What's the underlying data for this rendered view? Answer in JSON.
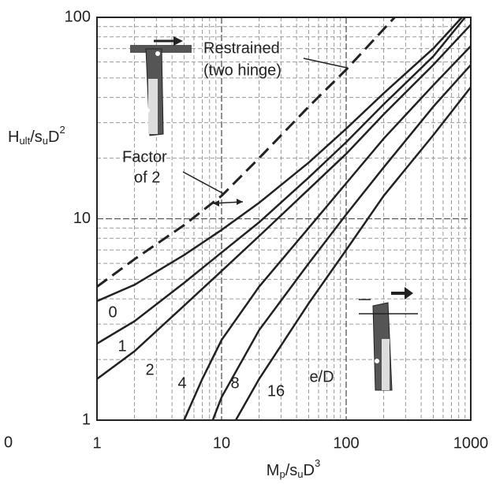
{
  "chart_data": {
    "type": "line",
    "log_x": true,
    "log_y": true,
    "grid": true,
    "xlim": [
      1,
      1000
    ],
    "ylim": [
      1,
      100
    ],
    "xticks": [
      1,
      10,
      100,
      1000
    ],
    "yticks": [
      1,
      10,
      100
    ],
    "xminor": [
      2,
      3,
      4,
      5,
      6,
      7,
      8,
      9,
      20,
      30,
      40,
      50,
      60,
      70,
      80,
      90,
      200,
      300,
      400,
      500,
      600,
      700,
      800,
      900
    ],
    "yminor": [
      2,
      3,
      4,
      5,
      6,
      7,
      8,
      9,
      20,
      30,
      40,
      50,
      60,
      70,
      80,
      90
    ],
    "xlabel_parts": [
      "M",
      "p",
      "/s",
      "u",
      "D",
      "3"
    ],
    "ylabel_parts": [
      "H",
      "ult",
      "/s",
      "u",
      "D",
      "2"
    ],
    "edge_label": "0",
    "series": [
      {
        "label_lines": [
          "Restrained",
          "(two hinge)"
        ],
        "dashed": true,
        "color": "#222",
        "x": [
          1,
          2,
          5,
          10,
          20,
          50,
          100,
          245
        ],
        "values": [
          4.6,
          6.3,
          9.3,
          13,
          20,
          36,
          55,
          100
        ]
      },
      {
        "label": "0",
        "color": "#222",
        "x": [
          1,
          2,
          5,
          10,
          20,
          50,
          100,
          200,
          500,
          850
        ],
        "values": [
          3.9,
          4.7,
          6.6,
          8.8,
          12,
          19,
          28,
          42,
          70,
          100
        ]
      },
      {
        "label": "1",
        "color": "#222",
        "x": [
          1,
          2,
          5,
          10,
          20,
          50,
          100,
          200,
          500,
          900
        ],
        "values": [
          2.4,
          3.1,
          4.8,
          6.8,
          9.6,
          16,
          24,
          37,
          64,
          100
        ]
      },
      {
        "label": "2",
        "color": "#222",
        "x": [
          1,
          2,
          5,
          10,
          20,
          50,
          100,
          200,
          500,
          1000
        ],
        "values": [
          1.6,
          2.2,
          3.7,
          5.5,
          8.2,
          14,
          21,
          33,
          58,
          92
        ]
      },
      {
        "label": "4",
        "color": "#222",
        "x": [
          5,
          7,
          10,
          20,
          50,
          100,
          200,
          500,
          1000
        ],
        "values": [
          1,
          1.6,
          2.5,
          4.6,
          9,
          15,
          25,
          46,
          72
        ]
      },
      {
        "label": "8",
        "color": "#222",
        "x": [
          8.5,
          10,
          20,
          50,
          100,
          200,
          500,
          1000
        ],
        "values": [
          1,
          1.3,
          2.8,
          6,
          10.5,
          18,
          36,
          58
        ]
      },
      {
        "label": "16",
        "color": "#222",
        "x": [
          13,
          20,
          50,
          100,
          200,
          500,
          1000
        ],
        "values": [
          1,
          1.6,
          3.8,
          7,
          13,
          26,
          45
        ]
      }
    ],
    "curve_family_label": "e/D",
    "factor_label_lines": [
      "Factor",
      "of 2"
    ]
  }
}
